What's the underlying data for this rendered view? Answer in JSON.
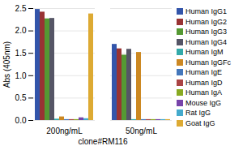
{
  "chart_data": {
    "type": "bar",
    "categories": [
      "200ng/mL",
      "50ng/mL"
    ],
    "xlabel": "clone#RM116",
    "ylabel": "Abs (405nm)",
    "ylim": [
      0,
      2.5
    ],
    "yticks": [
      {
        "value": 0,
        "label": "0.0"
      },
      0.5,
      {
        "value": 1.0,
        "label": "1.0"
      },
      1.5,
      {
        "value": 2.0,
        "label": "2.0"
      },
      2.5
    ],
    "grid": true,
    "legend": "right",
    "series": [
      {
        "name": "Human IgG1",
        "color": "#3355aa",
        "values": [
          2.48,
          1.7
        ]
      },
      {
        "name": "Human IgG2",
        "color": "#993333",
        "values": [
          2.42,
          1.6
        ]
      },
      {
        "name": "Human IgG3",
        "color": "#559933",
        "values": [
          2.27,
          1.46
        ]
      },
      {
        "name": "Human IgG4",
        "color": "#555566",
        "values": [
          2.28,
          1.59
        ]
      },
      {
        "name": "Human IgM",
        "color": "#33aaaa",
        "values": [
          0.03,
          0.02
        ]
      },
      {
        "name": "Human IgGFc",
        "color": "#cc8822",
        "values": [
          0.08,
          1.52
        ]
      },
      {
        "name": "Human IgE",
        "color": "#4477bb",
        "values": [
          0.02,
          0.02
        ]
      },
      {
        "name": "Human IgD",
        "color": "#aa4444",
        "values": [
          0.02,
          0.02
        ]
      },
      {
        "name": "Human IgA",
        "color": "#88aa22",
        "values": [
          0.02,
          0.02
        ]
      },
      {
        "name": "Mouse IgG",
        "color": "#7744aa",
        "values": [
          0.06,
          0.02
        ]
      },
      {
        "name": "Rat IgG",
        "color": "#44aacc",
        "values": [
          0.04,
          0.02
        ]
      },
      {
        "name": "Goat IgG",
        "color": "#ddaa33",
        "values": [
          2.38,
          0.02
        ]
      }
    ]
  }
}
